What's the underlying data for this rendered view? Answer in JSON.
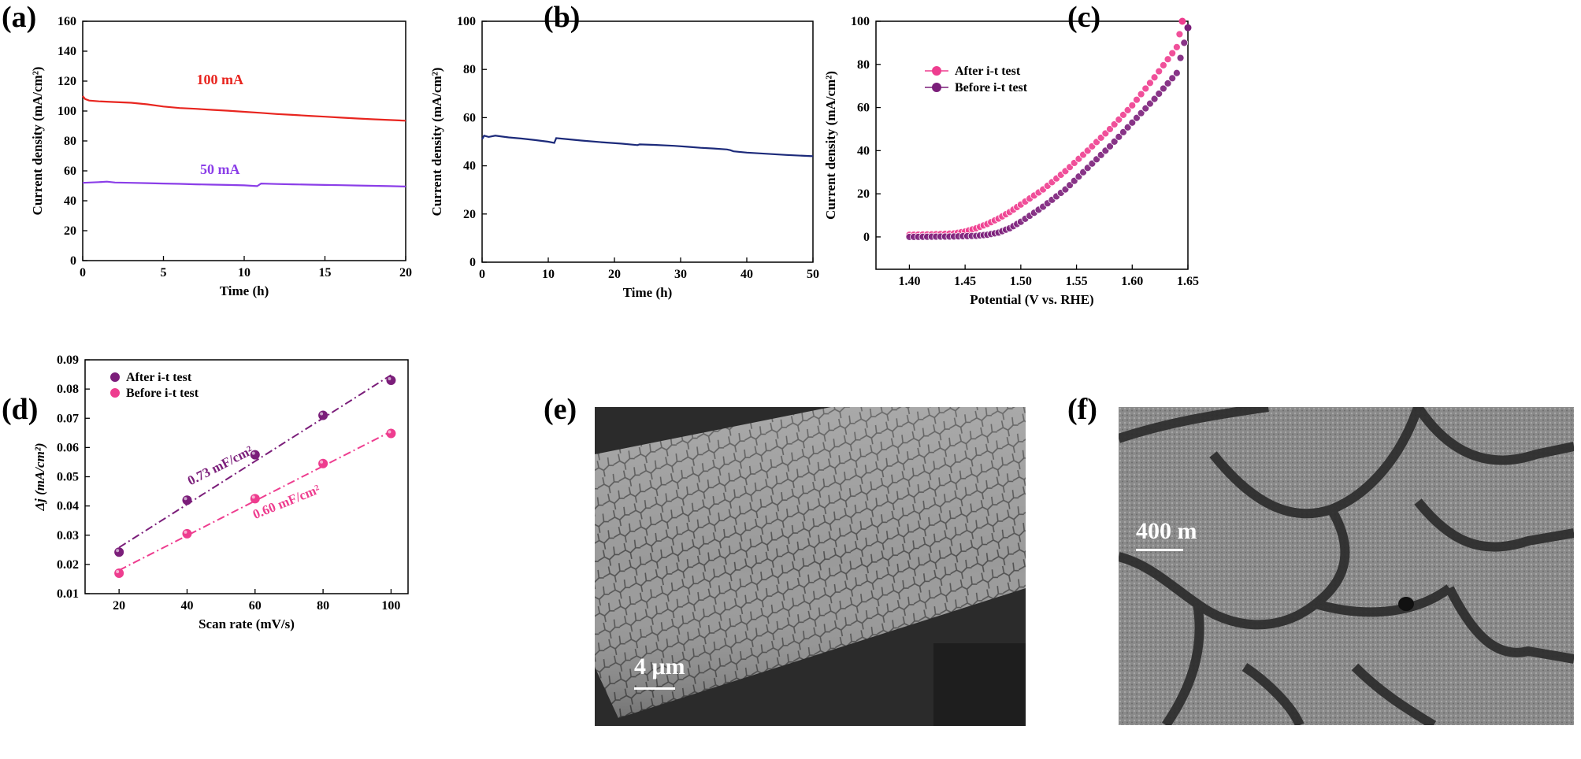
{
  "panels": {
    "a": "(a)",
    "b": "(b)",
    "c": "(c)",
    "d": "(d)",
    "e": "(e)",
    "f": "(f)"
  },
  "colors": {
    "red": "#e8251f",
    "violet": "#8b3ee8",
    "navy": "#1c2a7a",
    "pink": "#ee3d8f",
    "purple": "#7b1e7a"
  },
  "chart_data": [
    {
      "id": "a",
      "type": "line",
      "xlabel": "Time (h)",
      "ylabel": "Current density (mA/cm²)",
      "xlim": [
        0,
        20
      ],
      "ylim": [
        0,
        160
      ],
      "xticks": [
        0,
        5,
        10,
        15,
        20
      ],
      "yticks": [
        0,
        20,
        40,
        60,
        80,
        100,
        120,
        140,
        160
      ],
      "series": [
        {
          "name": "100 mA",
          "color": "#e8251f",
          "x": [
            0,
            0.15,
            0.4,
            1,
            2,
            3,
            4,
            5,
            6,
            7,
            8,
            9,
            10,
            11,
            12,
            13,
            14,
            15,
            16,
            17,
            18,
            19,
            20
          ],
          "y": [
            110,
            108,
            107,
            106.5,
            106,
            105.5,
            104.5,
            103,
            102,
            101.5,
            100.8,
            100.2,
            99.5,
            98.8,
            98,
            97.4,
            96.8,
            96.2,
            95.6,
            95,
            94.5,
            94,
            93.5
          ]
        },
        {
          "name": "50 mA",
          "color": "#8b3ee8",
          "x": [
            0,
            1,
            1.5,
            2,
            3,
            4,
            5,
            6,
            7,
            8,
            9,
            10,
            10.8,
            11.05,
            12,
            13,
            14,
            15,
            16,
            17,
            18,
            19,
            20
          ],
          "y": [
            52,
            52.5,
            52.8,
            52.2,
            52,
            51.8,
            51.5,
            51.3,
            51,
            50.8,
            50.6,
            50.3,
            49.8,
            51.5,
            51.2,
            51,
            50.8,
            50.6,
            50.4,
            50.2,
            50,
            49.8,
            49.5
          ]
        }
      ],
      "annotations": [
        "100 mA",
        "50 mA"
      ]
    },
    {
      "id": "b",
      "type": "line",
      "xlabel": "Time (h)",
      "ylabel": "Current density (mA/cm²)",
      "xlim": [
        0,
        50
      ],
      "ylim": [
        0,
        100
      ],
      "xticks": [
        0,
        10,
        20,
        30,
        40,
        50
      ],
      "yticks": [
        0,
        20,
        40,
        60,
        80,
        100
      ],
      "series": [
        {
          "color": "#1c2a7a",
          "x": [
            0,
            0.3,
            1,
            2,
            4,
            6,
            8,
            10,
            10.9,
            11.2,
            13,
            15,
            18,
            21,
            23.5,
            23.8,
            26,
            29,
            31,
            33,
            35,
            37,
            37.5,
            38,
            40,
            43,
            46,
            50
          ],
          "y": [
            51,
            52.5,
            52,
            52.5,
            51.8,
            51.3,
            50.7,
            50,
            49.5,
            51.5,
            51,
            50.5,
            49.8,
            49.2,
            48.6,
            48.9,
            48.7,
            48.3,
            47.9,
            47.5,
            47.2,
            46.8,
            46.5,
            46,
            45.5,
            45,
            44.5,
            44
          ]
        }
      ]
    },
    {
      "id": "c",
      "type": "line",
      "xlabel": "Potential (V vs. RHE)",
      "ylabel": "Current density (mA/cm²)",
      "xlim": [
        1.37,
        1.65
      ],
      "ylim": [
        -15,
        100
      ],
      "xticks": [
        1.4,
        1.45,
        1.5,
        1.55,
        1.6,
        1.65
      ],
      "yticks": [
        0,
        20,
        40,
        60,
        80,
        100
      ],
      "legend": "top-left",
      "series": [
        {
          "name": "After i-t test",
          "color": "#ee3d8f",
          "x": [
            1.4,
            1.42,
            1.44,
            1.45,
            1.46,
            1.47,
            1.48,
            1.49,
            1.5,
            1.52,
            1.54,
            1.56,
            1.58,
            1.6,
            1.62,
            1.64,
            1.645
          ],
          "y": [
            1,
            1.2,
            1.6,
            2.5,
            4,
            6,
            8.5,
            11.5,
            15,
            22,
            30.5,
            40,
            50,
            61,
            74,
            88,
            100
          ]
        },
        {
          "name": "Before i-t test",
          "color": "#7b1e7a",
          "x": [
            1.4,
            1.42,
            1.44,
            1.46,
            1.47,
            1.48,
            1.49,
            1.5,
            1.52,
            1.54,
            1.56,
            1.58,
            1.6,
            1.62,
            1.64,
            1.65
          ],
          "y": [
            0,
            0.1,
            0.2,
            0.5,
            1,
            2,
            4,
            7,
            14,
            22,
            32,
            42,
            53,
            64,
            76,
            97
          ]
        }
      ]
    },
    {
      "id": "d",
      "type": "scatter",
      "xlabel": "Scan rate (mV/s)",
      "ylabel": "Δj (mA/cm²)",
      "xlim": [
        10,
        105
      ],
      "ylim": [
        0.01,
        0.09
      ],
      "xticks": [
        20,
        40,
        60,
        80,
        100
      ],
      "yticks": [
        0.01,
        0.02,
        0.03,
        0.04,
        0.05,
        0.06,
        0.07,
        0.08,
        0.09
      ],
      "legend": "top-left",
      "series": [
        {
          "name": "After i-t test",
          "color": "#7b1e7a",
          "x": [
            20,
            40,
            60,
            80,
            100
          ],
          "y": [
            0.0242,
            0.042,
            0.0575,
            0.071,
            0.083
          ],
          "fit": [
            [
              20,
              0.0258
            ],
            [
              100,
              0.0848
            ]
          ],
          "fit_label": "0.73 mF/cm²"
        },
        {
          "name": "Before i-t test",
          "color": "#ee3d8f",
          "x": [
            20,
            40,
            60,
            80,
            100
          ],
          "y": [
            0.017,
            0.0305,
            0.0425,
            0.0545,
            0.0648
          ],
          "fit": [
            [
              20,
              0.018
            ],
            [
              100,
              0.0655
            ]
          ],
          "fit_label": "0.60 mF/cm²"
        }
      ]
    }
  ],
  "images": {
    "e": {
      "scale_label": "4 μm"
    },
    "f": {
      "scale_label": "400 m"
    }
  }
}
